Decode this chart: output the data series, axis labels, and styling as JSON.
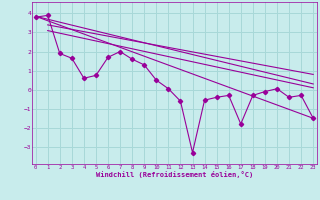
{
  "xlabel": "Windchill (Refroidissement éolien,°C)",
  "background_color": "#c8ecec",
  "grid_color": "#a8d8d8",
  "line_color": "#990099",
  "x_ticks": [
    0,
    1,
    2,
    3,
    4,
    5,
    6,
    7,
    8,
    9,
    10,
    11,
    12,
    13,
    14,
    15,
    16,
    17,
    18,
    19,
    20,
    21,
    22,
    23
  ],
  "y_ticks": [
    -3,
    -2,
    -1,
    0,
    1,
    2,
    3,
    4
  ],
  "xlim": [
    -0.3,
    23.3
  ],
  "ylim": [
    -3.9,
    4.6
  ],
  "main_x": [
    0,
    1,
    2,
    3,
    4,
    5,
    6,
    7,
    8,
    9,
    10,
    11,
    12,
    13,
    14,
    15,
    16,
    17,
    18,
    19,
    20,
    21,
    22,
    23
  ],
  "main_y": [
    3.8,
    3.9,
    1.9,
    1.65,
    0.6,
    0.75,
    1.7,
    2.0,
    1.6,
    1.3,
    0.5,
    0.05,
    -0.6,
    -3.3,
    -0.55,
    -0.4,
    -0.3,
    -1.8,
    -0.3,
    -0.1,
    0.05,
    -0.4,
    -0.3,
    -1.5
  ],
  "trend_lines": [
    {
      "x": [
        0,
        23
      ],
      "y": [
        3.85,
        -1.5
      ]
    },
    {
      "x": [
        0,
        23
      ],
      "y": [
        3.85,
        0.3
      ]
    },
    {
      "x": [
        1,
        23
      ],
      "y": [
        3.4,
        0.8
      ]
    },
    {
      "x": [
        1,
        23
      ],
      "y": [
        3.1,
        0.1
      ]
    }
  ]
}
